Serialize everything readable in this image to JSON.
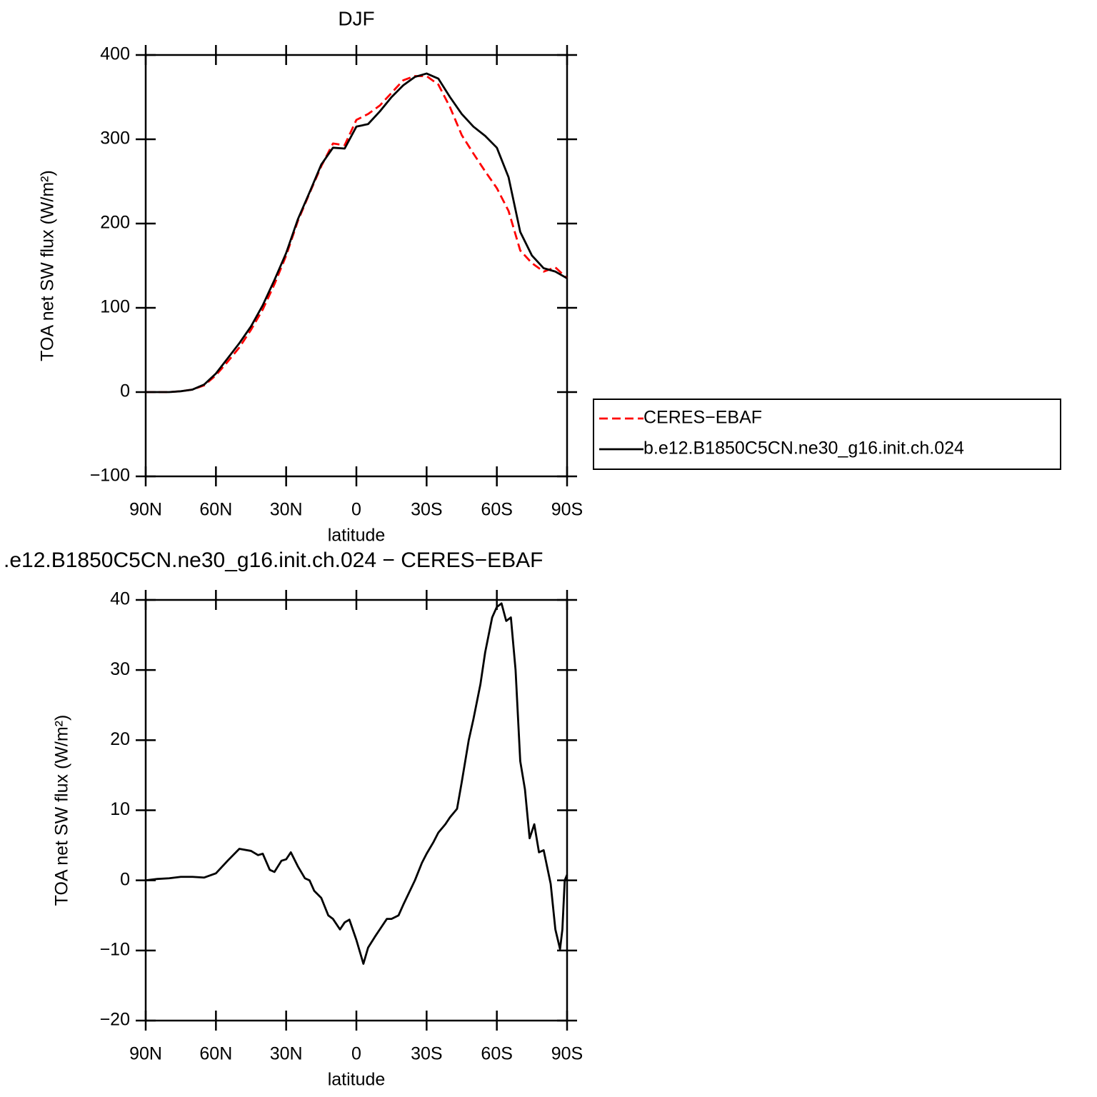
{
  "chart_data": [
    {
      "type": "line",
      "title": "DJF",
      "xlabel": "latitude",
      "ylabel": "TOA net SW flux (W/m²)",
      "x": [
        90,
        85,
        80,
        75,
        70,
        65,
        60,
        55,
        50,
        45,
        40,
        35,
        30,
        25,
        20,
        15,
        10,
        5,
        0,
        -5,
        -10,
        -15,
        -20,
        -25,
        -30,
        -35,
        -40,
        -45,
        -50,
        -55,
        -60,
        -65,
        -70,
        -75,
        -80,
        -85,
        -90
      ],
      "series": [
        {
          "name": "CERES−EBAF",
          "color": "#ff0000",
          "style": "dashed",
          "values": [
            0,
            0,
            0,
            1,
            3,
            8,
            20,
            36,
            53,
            74,
            98,
            128,
            162,
            203,
            236,
            268,
            295,
            293,
            323,
            330,
            340,
            355,
            370,
            375,
            375,
            365,
            338,
            305,
            283,
            262,
            242,
            215,
            168,
            153,
            143,
            148,
            135
          ]
        },
        {
          "name": "b.e12.B1850C5CN.ne30_g16.init.ch.024",
          "color": "#000000",
          "style": "solid",
          "values": [
            0,
            0,
            0,
            1,
            3,
            9,
            22,
            40,
            58,
            78,
            103,
            133,
            165,
            205,
            237,
            270,
            290,
            289,
            315,
            318,
            333,
            350,
            364,
            374,
            378,
            372,
            350,
            330,
            315,
            304,
            290,
            255,
            190,
            162,
            147,
            143,
            135
          ]
        }
      ],
      "xlim": [
        90,
        -90
      ],
      "xticks": [
        {
          "value": 90,
          "label": "90N"
        },
        {
          "value": 60,
          "label": "60N"
        },
        {
          "value": 30,
          "label": "30N"
        },
        0,
        {
          "value": -30,
          "label": "30S"
        },
        {
          "value": -60,
          "label": "60S"
        },
        {
          "value": -90,
          "label": "90S"
        }
      ],
      "ylim": [
        -100,
        400
      ],
      "yticks": [
        {
          "value": -100,
          "label": "−100"
        },
        0,
        100,
        200,
        300,
        400
      ],
      "legend": "right"
    },
    {
      "type": "line",
      "title": ".e12.B1850C5CN.ne30_g16.init.ch.024 − CERES−EBAF",
      "xlabel": "latitude",
      "ylabel": "TOA net SW flux (W/m²)",
      "x": [
        90,
        85,
        80,
        75,
        70,
        65,
        60,
        55,
        50,
        45,
        42,
        40,
        37,
        35,
        32,
        30,
        28,
        25,
        22,
        20,
        18,
        15,
        12,
        10,
        7,
        5,
        3,
        0,
        -3,
        -5,
        -8,
        -10,
        -13,
        -15,
        -18,
        -20,
        -25,
        -28,
        -30,
        -33,
        -35,
        -38,
        -40,
        -43,
        -45,
        -48,
        -50,
        -53,
        -55,
        -58,
        -60,
        -62,
        -64,
        -66,
        -68,
        -70,
        -72,
        -74,
        -76,
        -78,
        -80,
        -83,
        -85,
        -87,
        -88,
        -89,
        -90
      ],
      "color": "#000000",
      "values": [
        0,
        0.2,
        0.3,
        0.5,
        0.5,
        0.4,
        1,
        2.8,
        4.5,
        4.2,
        3.6,
        3.8,
        1.5,
        1.2,
        2.8,
        3,
        4,
        2,
        0.3,
        0,
        -1.5,
        -2.5,
        -5,
        -5.5,
        -7,
        -6,
        -5.6,
        -8.5,
        -11.9,
        -9.6,
        -8,
        -7,
        -5.5,
        -5.5,
        -5,
        -3.5,
        0,
        2.5,
        3.8,
        5.5,
        6.8,
        8,
        9,
        10.2,
        14,
        20,
        23,
        28,
        32.5,
        37.5,
        39,
        39.5,
        37,
        37.5,
        30,
        17,
        13,
        6,
        8,
        4,
        4.3,
        -0.5,
        -7,
        -9.8,
        -7,
        0,
        0.8
      ],
      "xlim": [
        90,
        -90
      ],
      "xticks": [
        {
          "value": 90,
          "label": "90N"
        },
        {
          "value": 60,
          "label": "60N"
        },
        {
          "value": 30,
          "label": "30N"
        },
        0,
        {
          "value": -30,
          "label": "30S"
        },
        {
          "value": -60,
          "label": "60S"
        },
        {
          "value": -90,
          "label": "90S"
        }
      ],
      "ylim": [
        -20,
        40
      ],
      "yticks": [
        {
          "value": -20,
          "label": "−20"
        },
        {
          "value": -10,
          "label": "−10"
        },
        0,
        10,
        20,
        30,
        40
      ]
    }
  ]
}
